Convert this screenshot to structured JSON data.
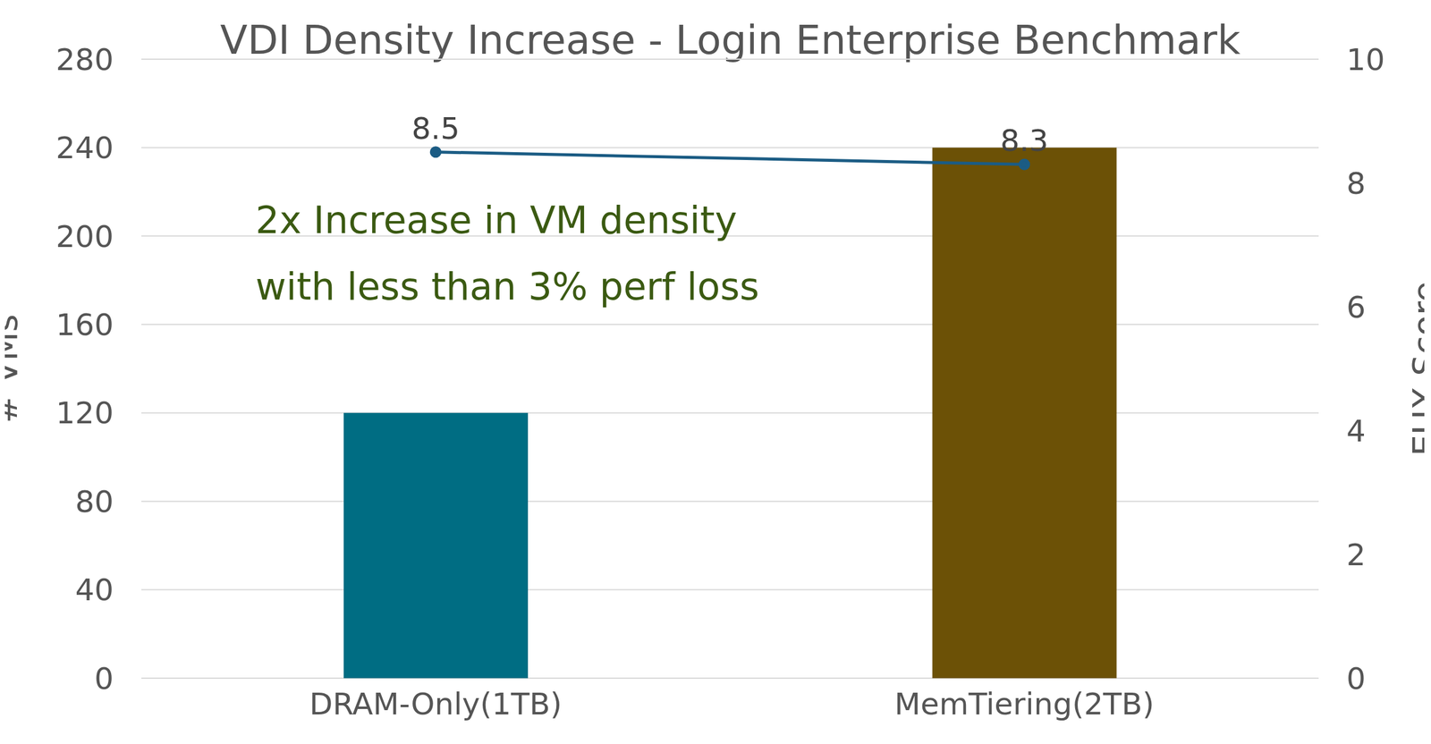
{
  "chart_data": {
    "type": "bar",
    "title": "VDI Density Increase - Login Enterprise Benchmark",
    "categories": [
      "DRAM-Only(1TB)",
      "MemTiering(2TB)"
    ],
    "ylabel": "# VMs",
    "y2label": "EUX Score",
    "annotations": [
      "2x Increase in VM density",
      "with less than 3% perf loss"
    ],
    "series": [
      {
        "type": "bar",
        "values": [
          120,
          240
        ],
        "colors": [
          "#006d83",
          "#6c5106"
        ]
      },
      {
        "type": "line",
        "axis": "y2",
        "values": [
          8.5,
          8.3
        ],
        "color": "#1b5c84",
        "marker": "circle",
        "data_labels": true
      }
    ],
    "ylim": [
      0,
      280
    ],
    "yticks": [
      0,
      40,
      80,
      120,
      160,
      200,
      240,
      280
    ],
    "y2lim": [
      0,
      10
    ],
    "y2ticks": [
      0,
      2,
      4,
      6,
      8,
      10
    ],
    "grid": true
  }
}
